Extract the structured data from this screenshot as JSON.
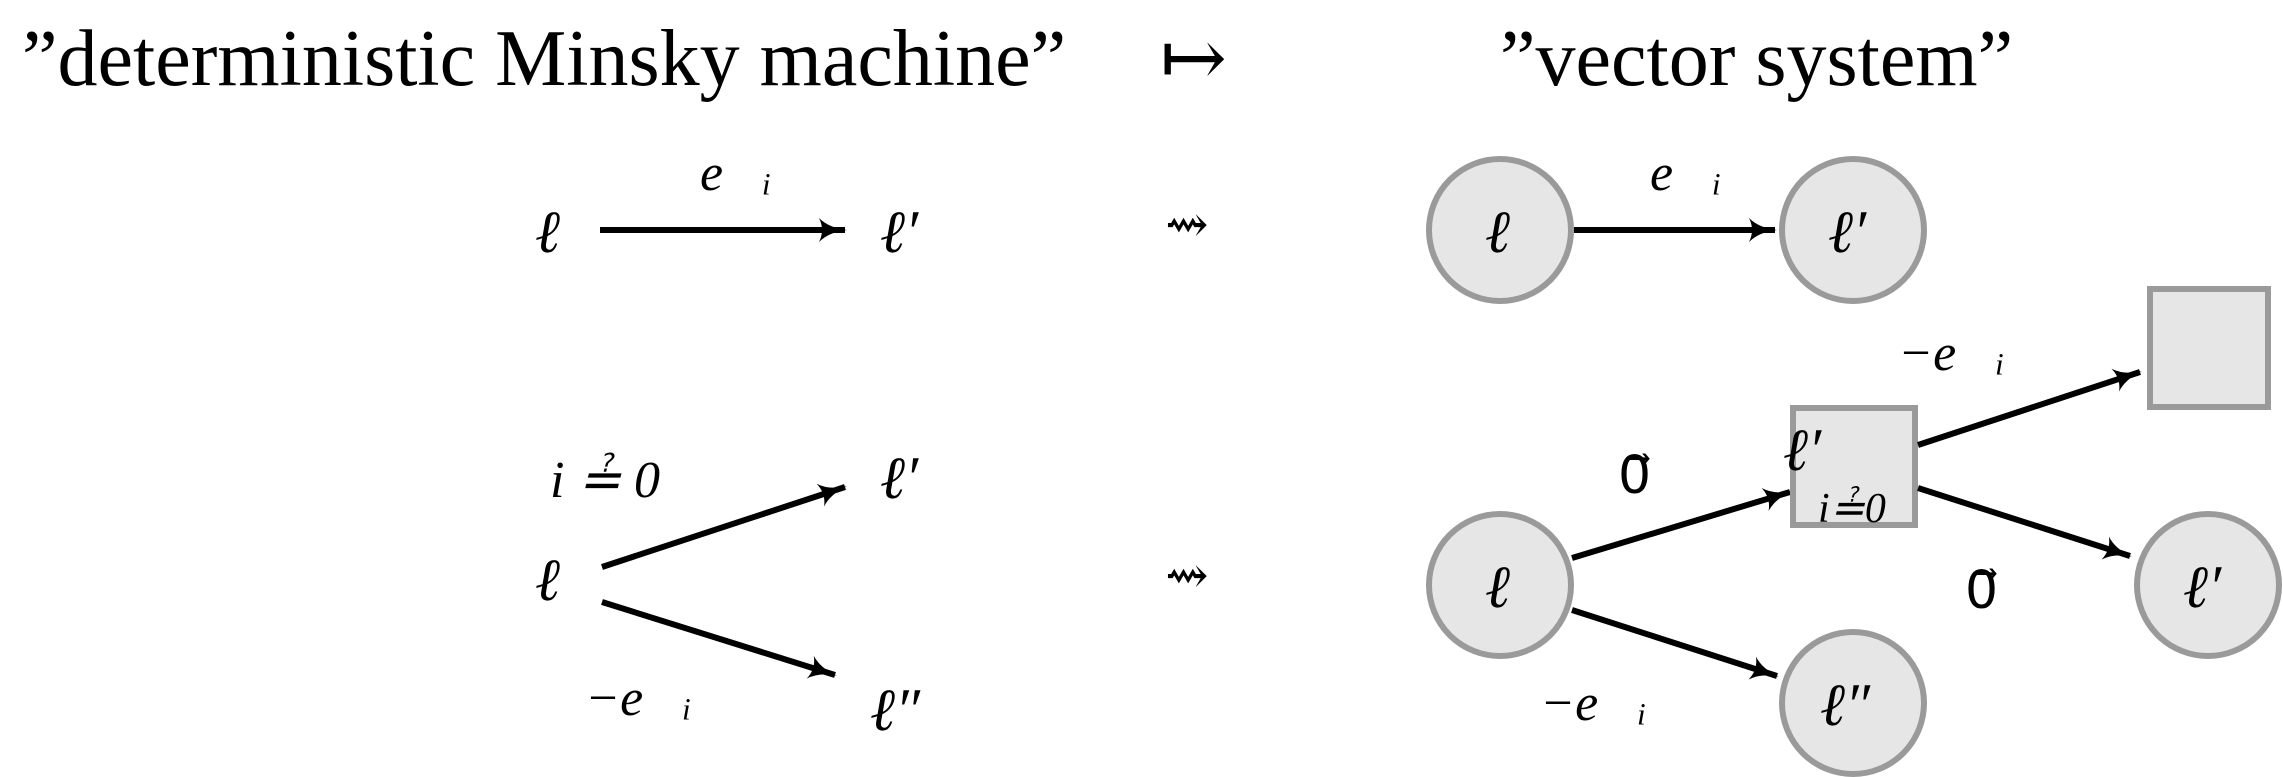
{
  "titles": {
    "left": "”deterministic Minsky machine”",
    "mapsto": "↦",
    "right": "”vector system”"
  },
  "row1": {
    "left": {
      "source": "ℓ",
      "target": "ℓ′",
      "edge_label": "e⃗ᵢ"
    },
    "transform_symbol": "⇝",
    "right": {
      "source": "ℓ",
      "target": "ℓ′",
      "edge_label": "e⃗ᵢ"
    }
  },
  "row2": {
    "left": {
      "source": "ℓ",
      "test_label": "i ≟ 0",
      "upper_target": "ℓ′",
      "lower_target": "ℓ″",
      "lower_edge_label": "−e⃗ᵢ"
    },
    "transform_symbol": "⇝",
    "right": {
      "source": "ℓ",
      "mid_square_label": "ℓ′",
      "mid_square_sublabel": "i≟0",
      "edge_to_square": "0⃗",
      "edge_square_to_box": "−e⃗ᵢ",
      "edge_square_to_node": "0⃗",
      "node_right": "ℓ′",
      "node_bottom": "ℓ″",
      "edge_to_bottom": "−e⃗ᵢ"
    }
  },
  "colors": {
    "node_fill": "#e6e6e6",
    "node_stroke": "#9a9a9a",
    "edge": "#000000"
  }
}
